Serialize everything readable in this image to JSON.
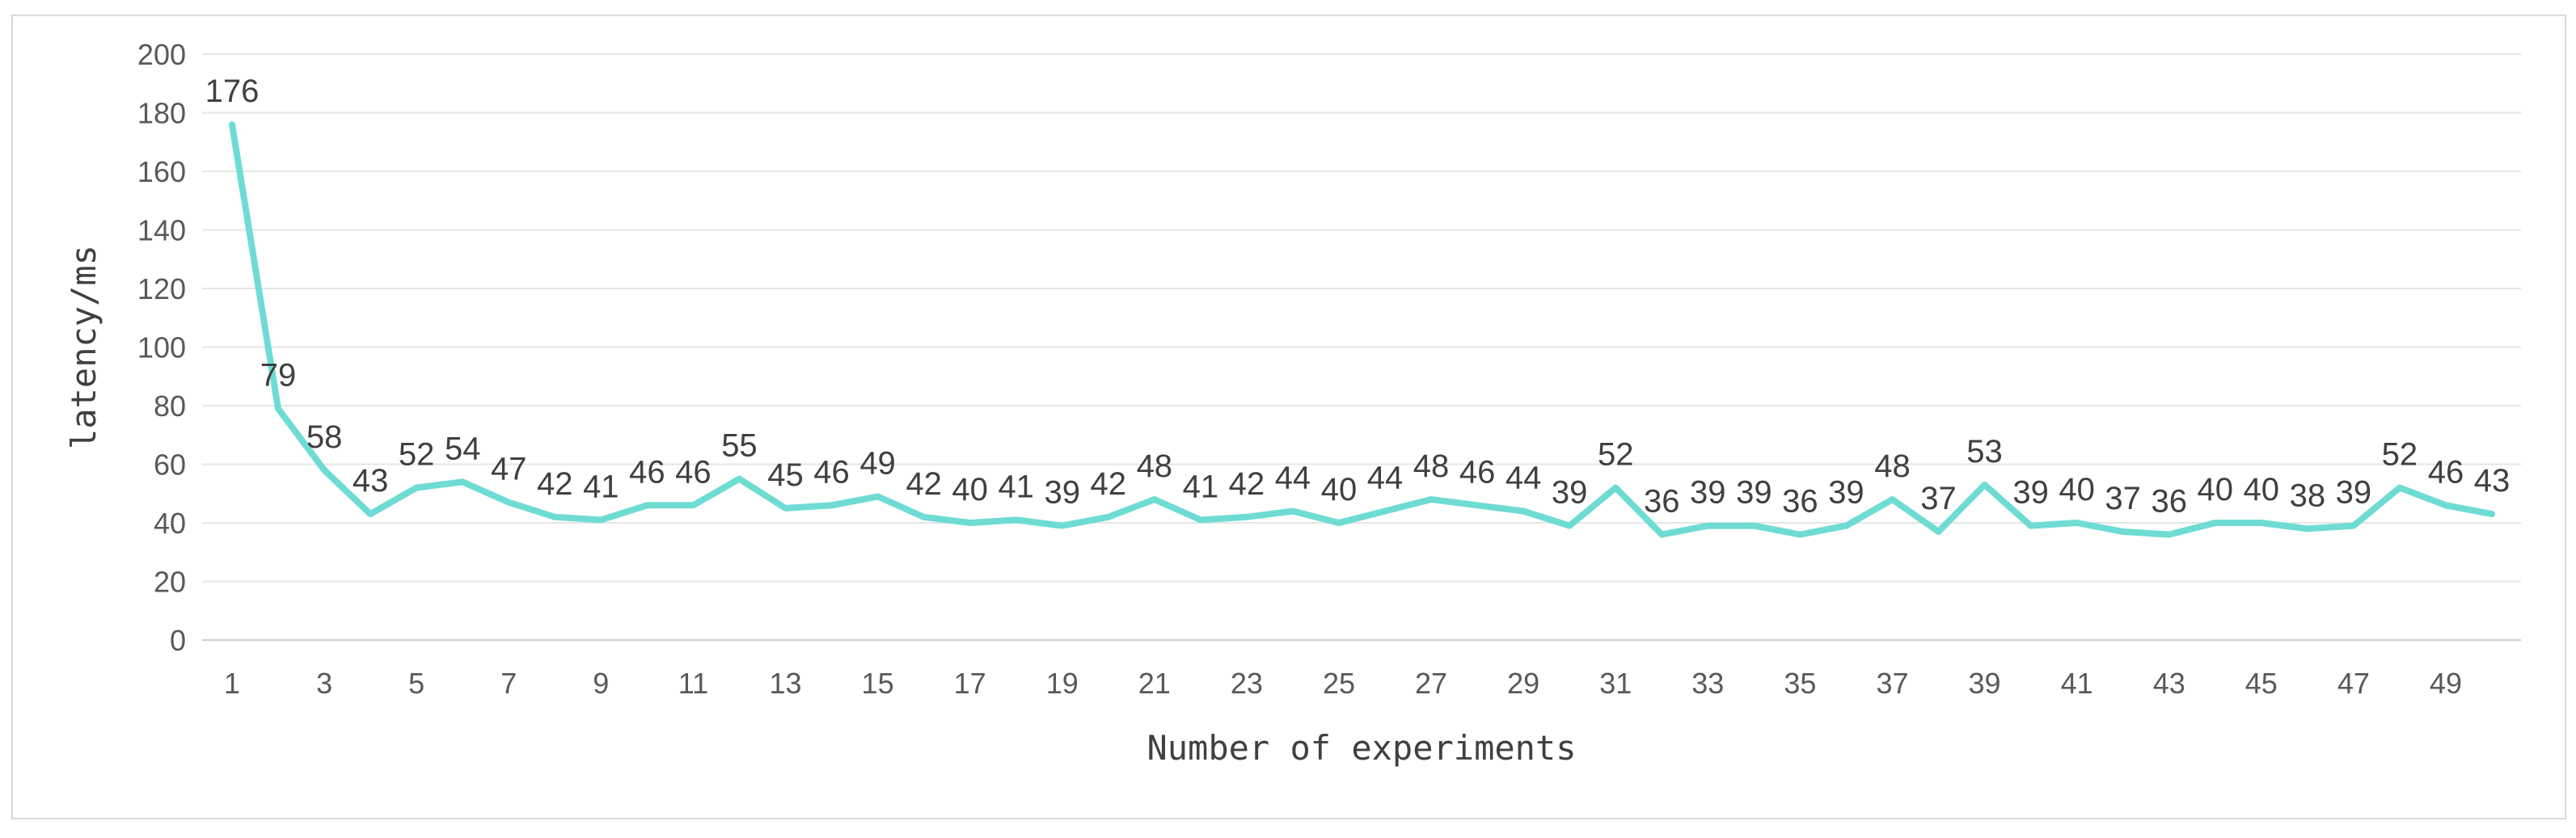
{
  "chart_data": {
    "type": "line",
    "title": "",
    "xlabel": "Number of experiments",
    "ylabel": "latency/ms",
    "ylim": [
      0,
      200
    ],
    "yticks": [
      0,
      20,
      40,
      60,
      80,
      100,
      120,
      140,
      160,
      180,
      200
    ],
    "xticks": [
      1,
      3,
      5,
      7,
      9,
      11,
      13,
      15,
      17,
      19,
      21,
      23,
      25,
      27,
      29,
      31,
      33,
      35,
      37,
      39,
      41,
      43,
      45,
      47,
      49
    ],
    "grid": "horizontal",
    "legend": "none",
    "line_color": "#6fdcd4",
    "x": [
      1,
      2,
      3,
      4,
      5,
      6,
      7,
      8,
      9,
      10,
      11,
      12,
      13,
      14,
      15,
      16,
      17,
      18,
      19,
      20,
      21,
      22,
      23,
      24,
      25,
      26,
      27,
      28,
      29,
      30,
      31,
      32,
      33,
      34,
      35,
      36,
      37,
      38,
      39,
      40,
      41,
      42,
      43,
      44,
      45,
      46,
      47,
      48,
      49,
      50
    ],
    "series": [
      {
        "values": [
          176,
          79,
          58,
          43,
          52,
          54,
          47,
          42,
          41,
          46,
          46,
          55,
          45,
          46,
          49,
          42,
          40,
          41,
          39,
          42,
          48,
          41,
          42,
          44,
          40,
          44,
          48,
          46,
          44,
          39,
          52,
          36,
          39,
          39,
          36,
          39,
          48,
          37,
          53,
          39,
          40,
          37,
          36,
          40,
          40,
          38,
          39,
          52,
          46,
          43
        ]
      }
    ]
  }
}
